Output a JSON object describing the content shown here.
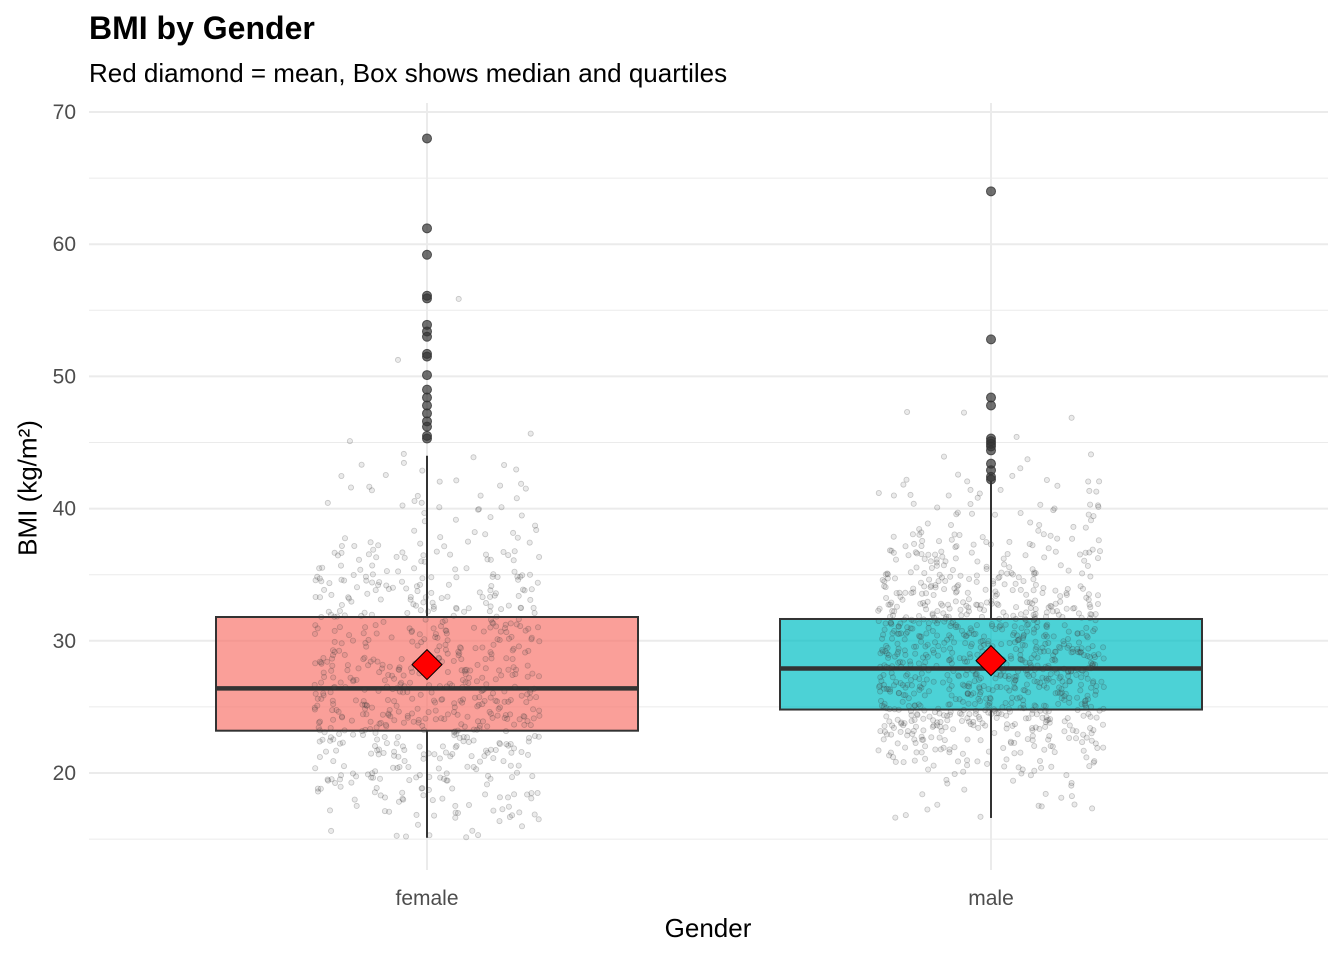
{
  "chart_data": {
    "type": "boxplot",
    "title": "BMI by Gender",
    "subtitle": "Red diamond = mean, Box shows median and quartiles",
    "xlabel": "Gender",
    "ylabel": "BMI (kg/m²)",
    "ylim": [
      15,
      70
    ],
    "yticks": [
      20,
      30,
      40,
      50,
      60,
      70
    ],
    "ytick_labels": [
      "20",
      "30",
      "40",
      "50",
      "60",
      "70"
    ],
    "grid": true,
    "legend": "none",
    "categories": [
      "female",
      "male"
    ],
    "series": [
      {
        "name": "female",
        "fill_color": "#F8766D",
        "q1": 23.2,
        "median": 26.4,
        "q3": 31.8,
        "mean": 28.2,
        "whisker_low": 15.1,
        "whisker_high": 44.0,
        "outliers": [
          68.0,
          61.2,
          59.2,
          56.1,
          55.9,
          53.9,
          53.4,
          53.0,
          51.7,
          51.5,
          50.1,
          49.0,
          48.4,
          47.8,
          47.2,
          46.6,
          46.2,
          45.5,
          45.3
        ],
        "jitter_count": 700
      },
      {
        "name": "male",
        "fill_color": "#00BFC4",
        "q1": 24.8,
        "median": 27.9,
        "q3": 31.65,
        "mean": 28.5,
        "whisker_low": 16.6,
        "whisker_high": 42.1,
        "outliers": [
          64.0,
          52.8,
          48.4,
          47.8,
          45.3,
          45.1,
          44.9,
          44.7,
          44.4,
          43.4,
          42.9,
          42.4,
          42.2
        ],
        "jitter_count": 1000
      }
    ],
    "mean_marker_color": "#FF0000",
    "box_alpha": 0.7
  }
}
